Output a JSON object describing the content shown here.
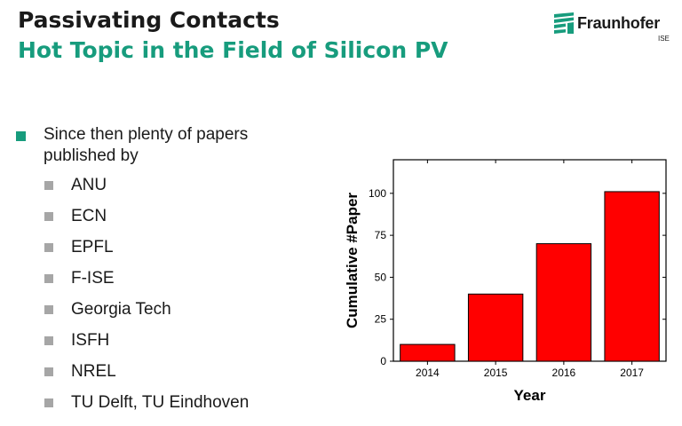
{
  "slide": {
    "title": "Passivating Contacts",
    "subtitle": "Hot Topic in the Field of Silicon PV"
  },
  "logo": {
    "name": "Fraunhofer",
    "sub": "ISE",
    "color": "#179c7d"
  },
  "bullets": {
    "main": "Since then plenty of papers published by",
    "institutions": [
      "ANU",
      "ECN",
      "EPFL",
      "F-ISE",
      "Georgia Tech",
      "ISFH",
      "NREL",
      "TU Delft, TU Eindhoven"
    ]
  },
  "colors": {
    "accent": "#179c7d",
    "bullet_gray": "#a6a6a6",
    "bar": "#ff0000"
  },
  "chart_data": {
    "type": "bar",
    "categories": [
      "2014",
      "2015",
      "2016",
      "2017"
    ],
    "values": [
      10,
      40,
      70,
      101
    ],
    "xlabel": "Year",
    "ylabel": "Cumulative #Paper",
    "ylim": [
      0,
      120
    ],
    "yticks": [
      0,
      25,
      50,
      75,
      100
    ],
    "grid": false,
    "legend": "none"
  }
}
